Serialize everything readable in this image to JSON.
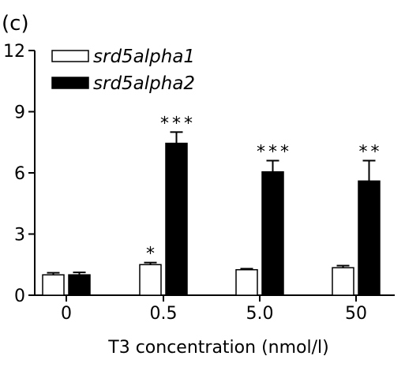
{
  "panel_label": "(c)",
  "chart_data": {
    "type": "bar",
    "categories": [
      "0",
      "0.5",
      "5.0",
      "50"
    ],
    "series": [
      {
        "name": "srd5alpha1",
        "color": "#ffffff",
        "values": [
          1.0,
          1.5,
          1.25,
          1.35
        ],
        "errors": [
          0.1,
          0.1,
          0.05,
          0.1
        ],
        "significance": [
          "",
          "*",
          "",
          ""
        ]
      },
      {
        "name": "srd5alpha2",
        "color": "#000000",
        "values": [
          1.0,
          7.45,
          6.05,
          5.6
        ],
        "errors": [
          0.12,
          0.55,
          0.55,
          1.0
        ],
        "significance": [
          "",
          "***",
          "***",
          "**"
        ]
      }
    ],
    "title": "",
    "xlabel": "T3 concentration (nmol/l)",
    "ylabel": "",
    "ylim": [
      0,
      12
    ],
    "yticks": [
      "0",
      "3",
      "6",
      "9",
      "12"
    ],
    "grid": false,
    "legend": "top-left"
  }
}
